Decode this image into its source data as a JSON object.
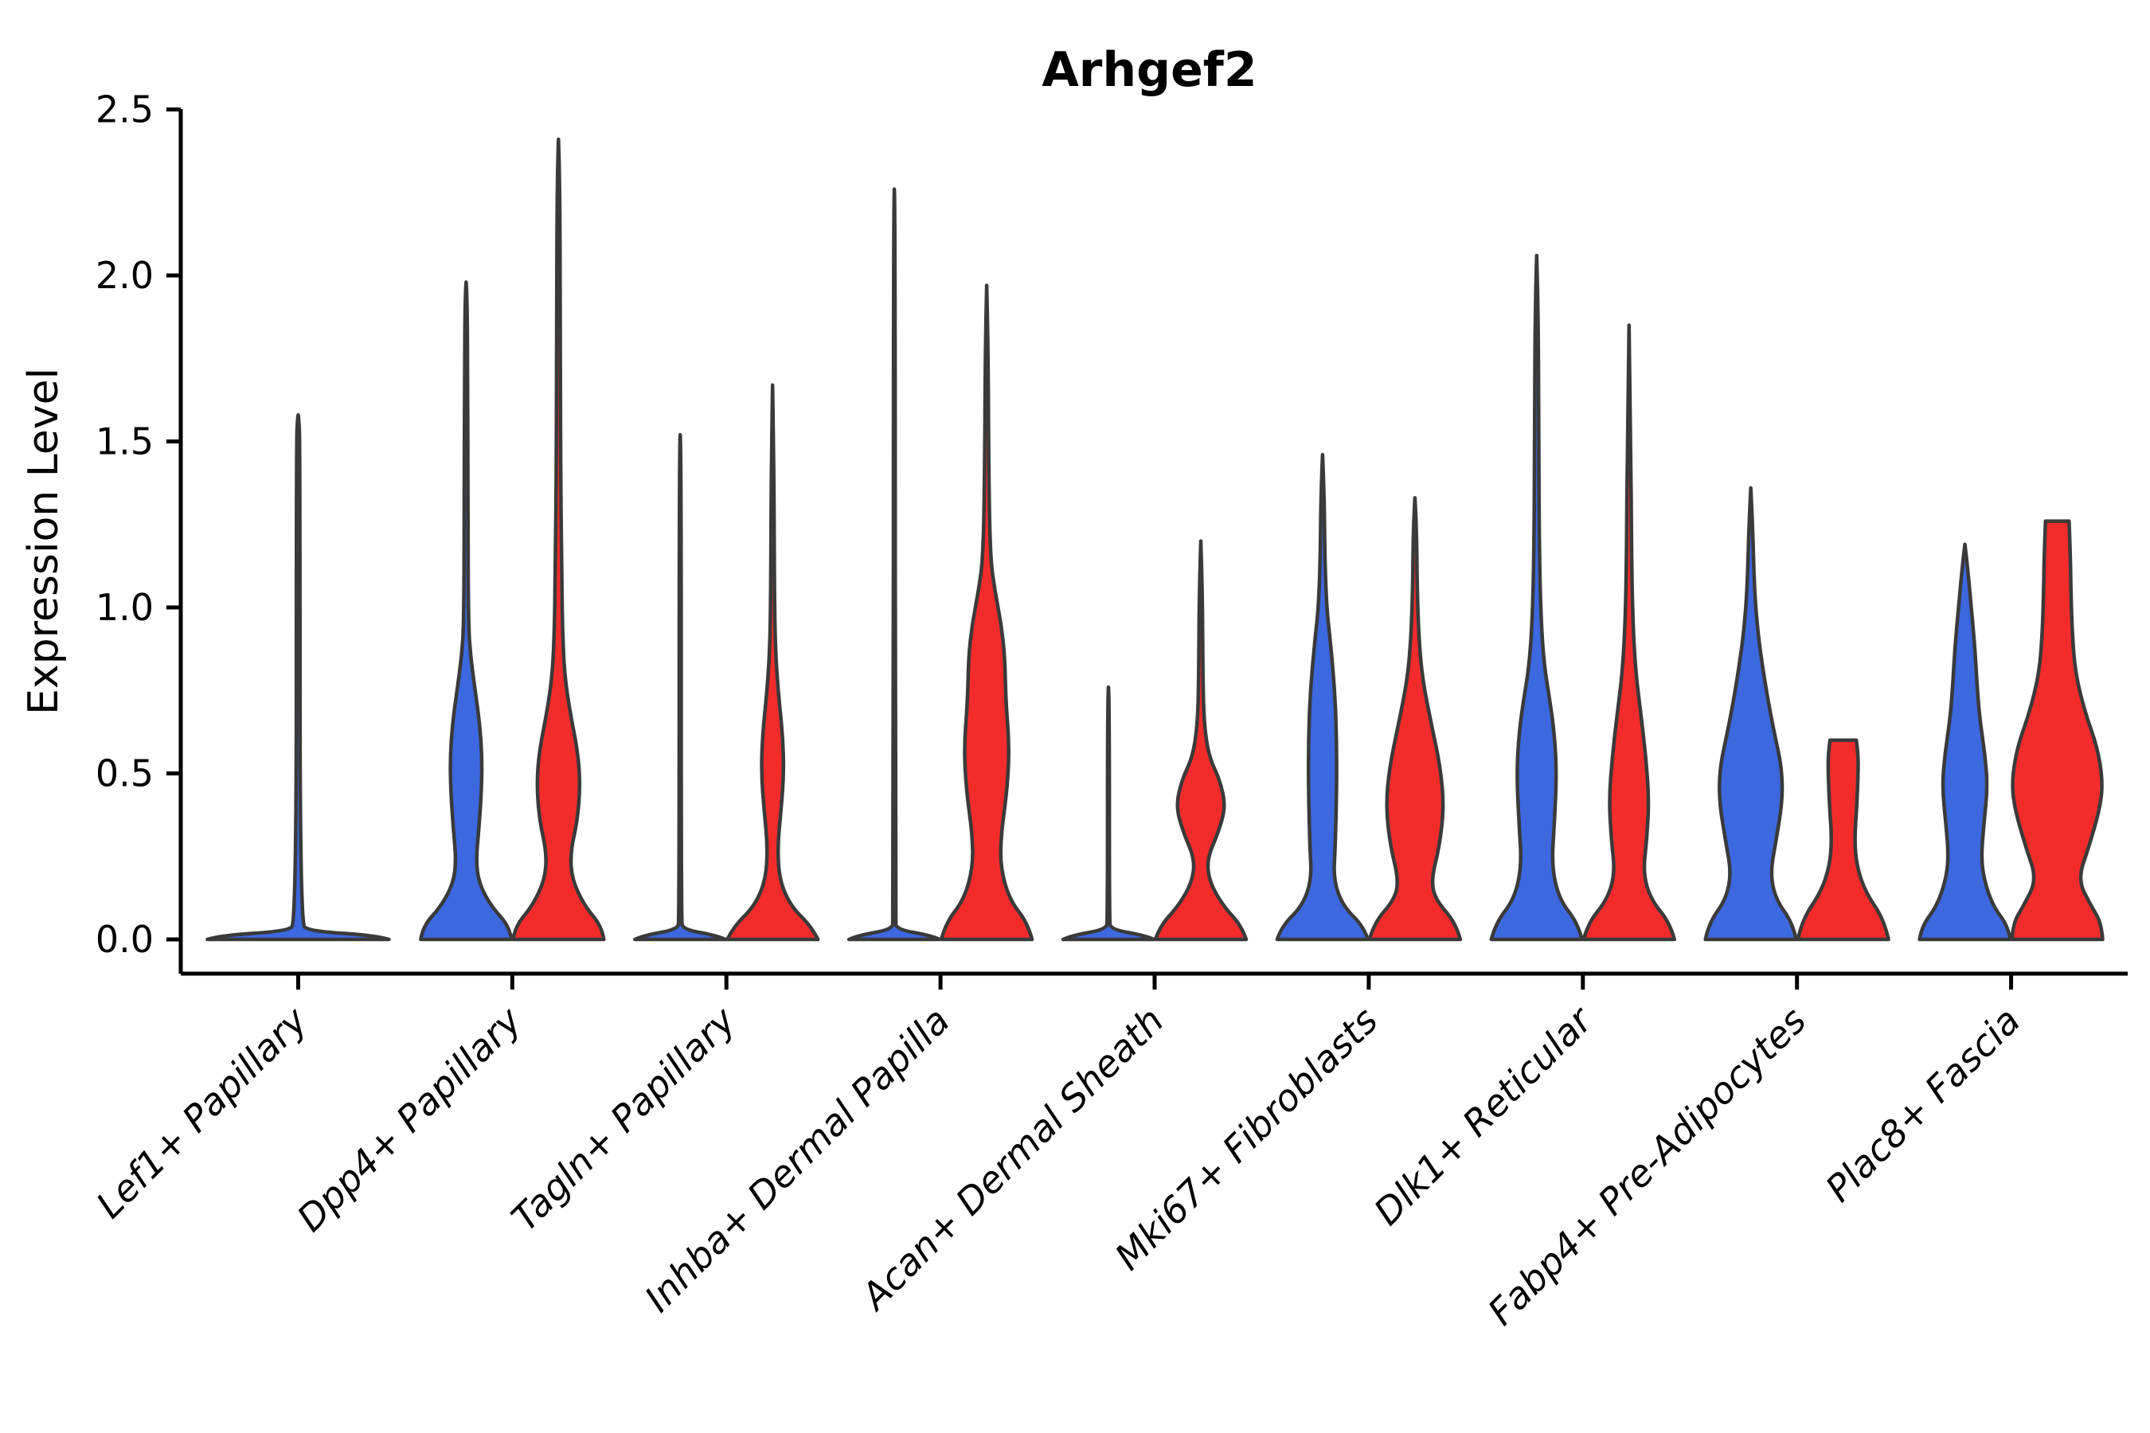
{
  "chart_data": {
    "type": "violin",
    "title": "Arhgef2",
    "ylabel": "Expression Level",
    "xlabel": "",
    "ylim": [
      -0.1,
      2.5
    ],
    "yticks": [
      0.0,
      0.5,
      1.0,
      1.5,
      2.0,
      2.5
    ],
    "ytick_labels": [
      "0.0",
      "0.5",
      "1.0",
      "1.5",
      "2.0",
      "2.5"
    ],
    "x_tick_rotation": 45,
    "grid": false,
    "legend": "none",
    "group_colors": {
      "blue": "#3C68E0",
      "red": "#F32B2B"
    },
    "outline_color": "#3A3A3A",
    "categories": [
      "Lef1+ Papillary",
      "Dpp4+ Papillary",
      "Tagln+ Papillary",
      "Inhba+ Dermal Papilla",
      "Acan+ Dermal Sheath",
      "Mki67+ Fibroblasts",
      "Dlk1+ Reticular",
      "Fabp4+ Pre-Adipocytes",
      "Plac8+ Fascia"
    ],
    "violins": [
      {
        "category": "Lef1+ Papillary",
        "single": {
          "max": 1.58,
          "cap": "spike",
          "profile": [
            [
              0,
              1.0
            ],
            [
              0.012,
              0.85
            ],
            [
              0.025,
              0.12
            ],
            [
              0.05,
              0.02
            ],
            [
              1.5,
              0.02
            ],
            [
              1.575,
              0.005
            ],
            [
              1.58,
              0
            ]
          ]
        }
      },
      {
        "category": "Dpp4+ Papillary",
        "blue": {
          "max": 1.98,
          "cap": "spike",
          "profile": [
            [
              0,
              1.0
            ],
            [
              0.04,
              0.95
            ],
            [
              0.1,
              0.55
            ],
            [
              0.17,
              0.28
            ],
            [
              0.24,
              0.22
            ],
            [
              0.33,
              0.28
            ],
            [
              0.45,
              0.34
            ],
            [
              0.55,
              0.35
            ],
            [
              0.65,
              0.3
            ],
            [
              0.75,
              0.2
            ],
            [
              0.85,
              0.1
            ],
            [
              0.95,
              0.05
            ],
            [
              1.3,
              0.04
            ],
            [
              1.7,
              0.035
            ],
            [
              1.95,
              0.02
            ],
            [
              1.98,
              0
            ]
          ]
        },
        "red": {
          "max": 2.41,
          "cap": "spike",
          "profile": [
            [
              0,
              1.0
            ],
            [
              0.04,
              0.95
            ],
            [
              0.1,
              0.58
            ],
            [
              0.18,
              0.3
            ],
            [
              0.26,
              0.26
            ],
            [
              0.36,
              0.42
            ],
            [
              0.47,
              0.48
            ],
            [
              0.57,
              0.42
            ],
            [
              0.68,
              0.26
            ],
            [
              0.8,
              0.13
            ],
            [
              0.95,
              0.085
            ],
            [
              1.1,
              0.075
            ],
            [
              1.35,
              0.05
            ],
            [
              1.8,
              0.04
            ],
            [
              2.3,
              0.03
            ],
            [
              2.41,
              0
            ]
          ]
        }
      },
      {
        "category": "Tagln+ Papillary",
        "blue": {
          "max": 1.52,
          "cap": "spike",
          "profile": [
            [
              0,
              1.0
            ],
            [
              0.012,
              0.8
            ],
            [
              0.03,
              0.06
            ],
            [
              0.06,
              0.022
            ],
            [
              1.48,
              0.022
            ],
            [
              1.52,
              0
            ]
          ]
        },
        "red": {
          "max": 1.67,
          "cap": "spike",
          "profile": [
            [
              0,
              1.0
            ],
            [
              0.04,
              0.85
            ],
            [
              0.1,
              0.4
            ],
            [
              0.18,
              0.15
            ],
            [
              0.28,
              0.11
            ],
            [
              0.38,
              0.18
            ],
            [
              0.5,
              0.25
            ],
            [
              0.62,
              0.22
            ],
            [
              0.75,
              0.12
            ],
            [
              0.88,
              0.06
            ],
            [
              1.05,
              0.04
            ],
            [
              1.4,
              0.03
            ],
            [
              1.67,
              0
            ]
          ]
        }
      },
      {
        "category": "Inhba+ Dermal Papilla",
        "blue": {
          "max": 2.26,
          "cap": "spike",
          "profile": [
            [
              0,
              1.0
            ],
            [
              0.012,
              0.8
            ],
            [
              0.03,
              0.05
            ],
            [
              0.06,
              0.02
            ],
            [
              2.2,
              0.02
            ],
            [
              2.26,
              0
            ]
          ]
        },
        "red": {
          "max": 1.97,
          "cap": "spike",
          "profile": [
            [
              0,
              1.0
            ],
            [
              0.05,
              0.9
            ],
            [
              0.12,
              0.5
            ],
            [
              0.22,
              0.3
            ],
            [
              0.32,
              0.32
            ],
            [
              0.45,
              0.45
            ],
            [
              0.58,
              0.5
            ],
            [
              0.72,
              0.42
            ],
            [
              0.85,
              0.4
            ],
            [
              0.95,
              0.32
            ],
            [
              1.05,
              0.18
            ],
            [
              1.15,
              0.08
            ],
            [
              1.4,
              0.045
            ],
            [
              1.8,
              0.03
            ],
            [
              1.97,
              0
            ]
          ]
        }
      },
      {
        "category": "Acan+ Dermal Sheath",
        "blue": {
          "max": 0.76,
          "cap": "spike",
          "profile": [
            [
              0,
              1.0
            ],
            [
              0.012,
              0.8
            ],
            [
              0.03,
              0.05
            ],
            [
              0.06,
              0.02
            ],
            [
              0.72,
              0.02
            ],
            [
              0.76,
              0
            ]
          ]
        },
        "red": {
          "max": 1.2,
          "cap": "spike",
          "profile": [
            [
              0,
              1.0
            ],
            [
              0.04,
              0.9
            ],
            [
              0.1,
              0.5
            ],
            [
              0.17,
              0.2
            ],
            [
              0.24,
              0.13
            ],
            [
              0.32,
              0.38
            ],
            [
              0.4,
              0.55
            ],
            [
              0.48,
              0.42
            ],
            [
              0.55,
              0.18
            ],
            [
              0.65,
              0.07
            ],
            [
              0.8,
              0.045
            ],
            [
              1.05,
              0.035
            ],
            [
              1.2,
              0
            ]
          ]
        }
      },
      {
        "category": "Mki67+ Fibroblasts",
        "blue": {
          "max": 1.46,
          "cap": "spike",
          "profile": [
            [
              0,
              1.0
            ],
            [
              0.04,
              0.9
            ],
            [
              0.1,
              0.45
            ],
            [
              0.18,
              0.24
            ],
            [
              0.28,
              0.28
            ],
            [
              0.45,
              0.31
            ],
            [
              0.6,
              0.31
            ],
            [
              0.75,
              0.27
            ],
            [
              0.9,
              0.17
            ],
            [
              1.0,
              0.09
            ],
            [
              1.15,
              0.05
            ],
            [
              1.35,
              0.035
            ],
            [
              1.46,
              0
            ]
          ]
        },
        "red": {
          "max": 1.33,
          "cap": "spike",
          "profile": [
            [
              0,
              1.0
            ],
            [
              0.05,
              0.9
            ],
            [
              0.12,
              0.45
            ],
            [
              0.18,
              0.36
            ],
            [
              0.28,
              0.54
            ],
            [
              0.4,
              0.64
            ],
            [
              0.52,
              0.56
            ],
            [
              0.65,
              0.36
            ],
            [
              0.78,
              0.17
            ],
            [
              0.9,
              0.09
            ],
            [
              1.05,
              0.05
            ],
            [
              1.25,
              0.035
            ],
            [
              1.33,
              0
            ]
          ]
        }
      },
      {
        "category": "Dlk1+ Reticular",
        "blue": {
          "max": 2.06,
          "cap": "spike",
          "profile": [
            [
              0,
              1.0
            ],
            [
              0.05,
              0.9
            ],
            [
              0.12,
              0.5
            ],
            [
              0.22,
              0.33
            ],
            [
              0.35,
              0.39
            ],
            [
              0.5,
              0.44
            ],
            [
              0.62,
              0.39
            ],
            [
              0.72,
              0.29
            ],
            [
              0.82,
              0.17
            ],
            [
              0.95,
              0.1
            ],
            [
              1.15,
              0.06
            ],
            [
              1.5,
              0.045
            ],
            [
              1.9,
              0.035
            ],
            [
              2.06,
              0
            ]
          ]
        },
        "red": {
          "max": 1.85,
          "cap": "spike",
          "profile": [
            [
              0,
              1.0
            ],
            [
              0.05,
              0.9
            ],
            [
              0.12,
              0.48
            ],
            [
              0.2,
              0.31
            ],
            [
              0.3,
              0.39
            ],
            [
              0.42,
              0.44
            ],
            [
              0.55,
              0.37
            ],
            [
              0.68,
              0.26
            ],
            [
              0.8,
              0.15
            ],
            [
              0.95,
              0.085
            ],
            [
              1.15,
              0.055
            ],
            [
              1.5,
              0.04
            ],
            [
              1.85,
              0
            ]
          ]
        }
      },
      {
        "category": "Fabp4+ Pre-Adipocytes",
        "blue": {
          "max": 1.36,
          "cap": "spike",
          "profile": [
            [
              0,
              1.0
            ],
            [
              0.05,
              0.92
            ],
            [
              0.12,
              0.55
            ],
            [
              0.2,
              0.43
            ],
            [
              0.3,
              0.56
            ],
            [
              0.42,
              0.7
            ],
            [
              0.52,
              0.68
            ],
            [
              0.62,
              0.52
            ],
            [
              0.72,
              0.38
            ],
            [
              0.82,
              0.26
            ],
            [
              0.92,
              0.16
            ],
            [
              1.05,
              0.08
            ],
            [
              1.25,
              0.04
            ],
            [
              1.36,
              0
            ]
          ]
        },
        "red": {
          "max": 0.6,
          "cap": "blunt",
          "profile": [
            [
              0,
              1.0
            ],
            [
              0.06,
              0.9
            ],
            [
              0.14,
              0.5
            ],
            [
              0.22,
              0.3
            ],
            [
              0.3,
              0.25
            ],
            [
              0.4,
              0.3
            ],
            [
              0.5,
              0.33
            ],
            [
              0.56,
              0.33
            ],
            [
              0.6,
              0.29
            ]
          ]
        }
      },
      {
        "category": "Plac8+ Fascia",
        "blue": {
          "max": 1.19,
          "cap": "spike",
          "profile": [
            [
              0,
              1.0
            ],
            [
              0.04,
              0.95
            ],
            [
              0.1,
              0.62
            ],
            [
              0.18,
              0.42
            ],
            [
              0.25,
              0.36
            ],
            [
              0.35,
              0.42
            ],
            [
              0.46,
              0.5
            ],
            [
              0.56,
              0.44
            ],
            [
              0.66,
              0.33
            ],
            [
              0.76,
              0.27
            ],
            [
              0.88,
              0.22
            ],
            [
              1.0,
              0.14
            ],
            [
              1.12,
              0.06
            ],
            [
              1.19,
              0
            ]
          ]
        },
        "red": {
          "max": 1.26,
          "cap": "blunt",
          "profile": [
            [
              0,
              1.0
            ],
            [
              0.05,
              0.97
            ],
            [
              0.1,
              0.75
            ],
            [
              0.18,
              0.45
            ],
            [
              0.28,
              0.7
            ],
            [
              0.4,
              0.95
            ],
            [
              0.48,
              1.0
            ],
            [
              0.58,
              0.88
            ],
            [
              0.68,
              0.62
            ],
            [
              0.8,
              0.4
            ],
            [
              0.92,
              0.33
            ],
            [
              1.05,
              0.3
            ],
            [
              1.15,
              0.29
            ],
            [
              1.26,
              0.26
            ]
          ]
        }
      }
    ]
  }
}
